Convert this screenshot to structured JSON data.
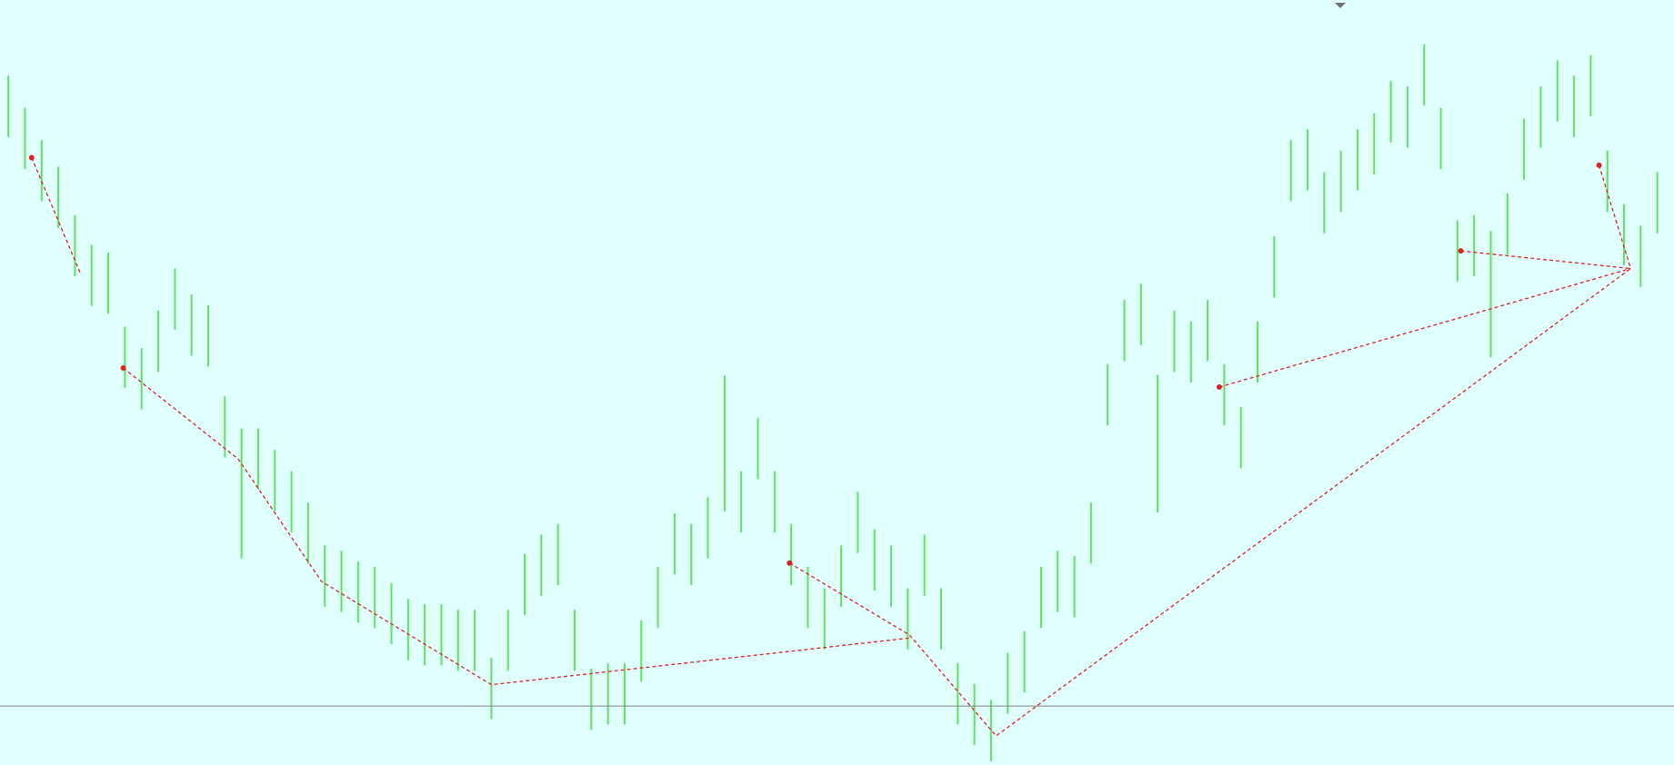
{
  "chart_data": {
    "type": "range-bar",
    "background": "#e0ffff",
    "color": "#5fe35f",
    "xlim": [
      -0.5,
      100
    ],
    "ylim": [
      0,
      100
    ],
    "high": [
      90.1,
      85.9,
      81.7,
      78.2,
      71.9,
      68.0,
      67.0,
      57.3,
      54.5,
      59.4,
      64.9,
      61.5,
      60.1,
      48.2,
      44.0,
      44.0,
      41.2,
      38.4,
      34.3,
      28.7,
      28.0,
      26.6,
      25.9,
      23.8,
      21.7,
      21.0,
      21.0,
      20.3,
      20.3,
      14.0,
      20.3,
      27.6,
      30.1,
      31.5,
      20.3,
      12.6,
      13.3,
      13.3,
      18.9,
      25.9,
      32.9,
      31.5,
      35.0,
      50.9,
      38.4,
      45.4,
      38.4,
      31.5,
      25.9,
      23.1,
      28.7,
      35.7,
      30.8,
      28.7,
      23.1,
      30.1,
      23.1,
      13.3,
      10.6,
      8.5,
      14.7,
      17.5,
      25.9,
      28.0,
      27.3,
      34.3,
      52.4,
      60.8,
      62.9,
      51.0,
      59.4,
      58.0,
      60.8,
      52.4,
      46.8,
      58.0,
      69.1,
      81.7,
      83.1,
      77.5,
      80.3,
      83.1,
      85.2,
      89.4,
      88.7,
      94.2,
      85.9,
      71.2,
      71.9,
      69.8,
      74.7,
      84.5,
      88.7,
      92.1,
      90.1,
      92.8,
      80.3,
      73.3,
      70.5,
      77.5
    ],
    "low": [
      82.1,
      77.9,
      73.7,
      70.2,
      63.9,
      60.0,
      59.0,
      49.3,
      46.5,
      51.4,
      56.9,
      53.5,
      52.1,
      40.2,
      27.0,
      36.0,
      33.2,
      30.4,
      26.3,
      20.7,
      20.0,
      18.6,
      17.9,
      15.8,
      13.7,
      13.0,
      13.0,
      12.3,
      12.3,
      6.0,
      12.3,
      19.6,
      22.1,
      23.5,
      12.3,
      4.6,
      5.3,
      5.3,
      10.9,
      17.9,
      24.9,
      23.5,
      27.0,
      33.2,
      30.4,
      37.4,
      30.4,
      23.5,
      17.9,
      15.1,
      20.7,
      27.7,
      22.8,
      20.7,
      15.1,
      22.1,
      15.1,
      5.3,
      2.6,
      0.5,
      6.7,
      9.5,
      17.9,
      20.0,
      19.3,
      26.3,
      44.4,
      52.8,
      54.9,
      33.0,
      51.4,
      50.0,
      52.8,
      44.4,
      38.8,
      50.0,
      61.1,
      73.7,
      75.1,
      69.5,
      72.3,
      75.1,
      77.2,
      81.4,
      80.7,
      86.2,
      77.9,
      63.2,
      63.9,
      53.3,
      66.7,
      76.5,
      80.7,
      84.1,
      82.1,
      84.8,
      72.3,
      65.3,
      62.5,
      69.5
    ],
    "hline": {
      "value": 7.7,
      "color": "#808080"
    },
    "zigzag": {
      "color": "#e02020",
      "segments": [
        {
          "x": [
            1.4,
            4.3
          ],
          "y": [
            79.4,
            64.4
          ]
        },
        {
          "x": [
            6.9,
            13.8,
            18.8,
            29.0,
            54.1
          ],
          "y": [
            51.9,
            40.0,
            24.0,
            10.5,
            16.6
          ]
        },
        {
          "x": [
            46.9,
            54.1,
            59.3,
            97.4
          ],
          "y": [
            26.4,
            17.0,
            3.8,
            64.9
          ]
        },
        {
          "x": [
            72.7,
            97.4
          ],
          "y": [
            49.4,
            64.9
          ]
        },
        {
          "x": [
            87.2,
            97.4
          ],
          "y": [
            67.2,
            64.9
          ]
        },
        {
          "x": [
            95.5,
            97.4
          ],
          "y": [
            78.4,
            64.9
          ]
        }
      ]
    }
  }
}
